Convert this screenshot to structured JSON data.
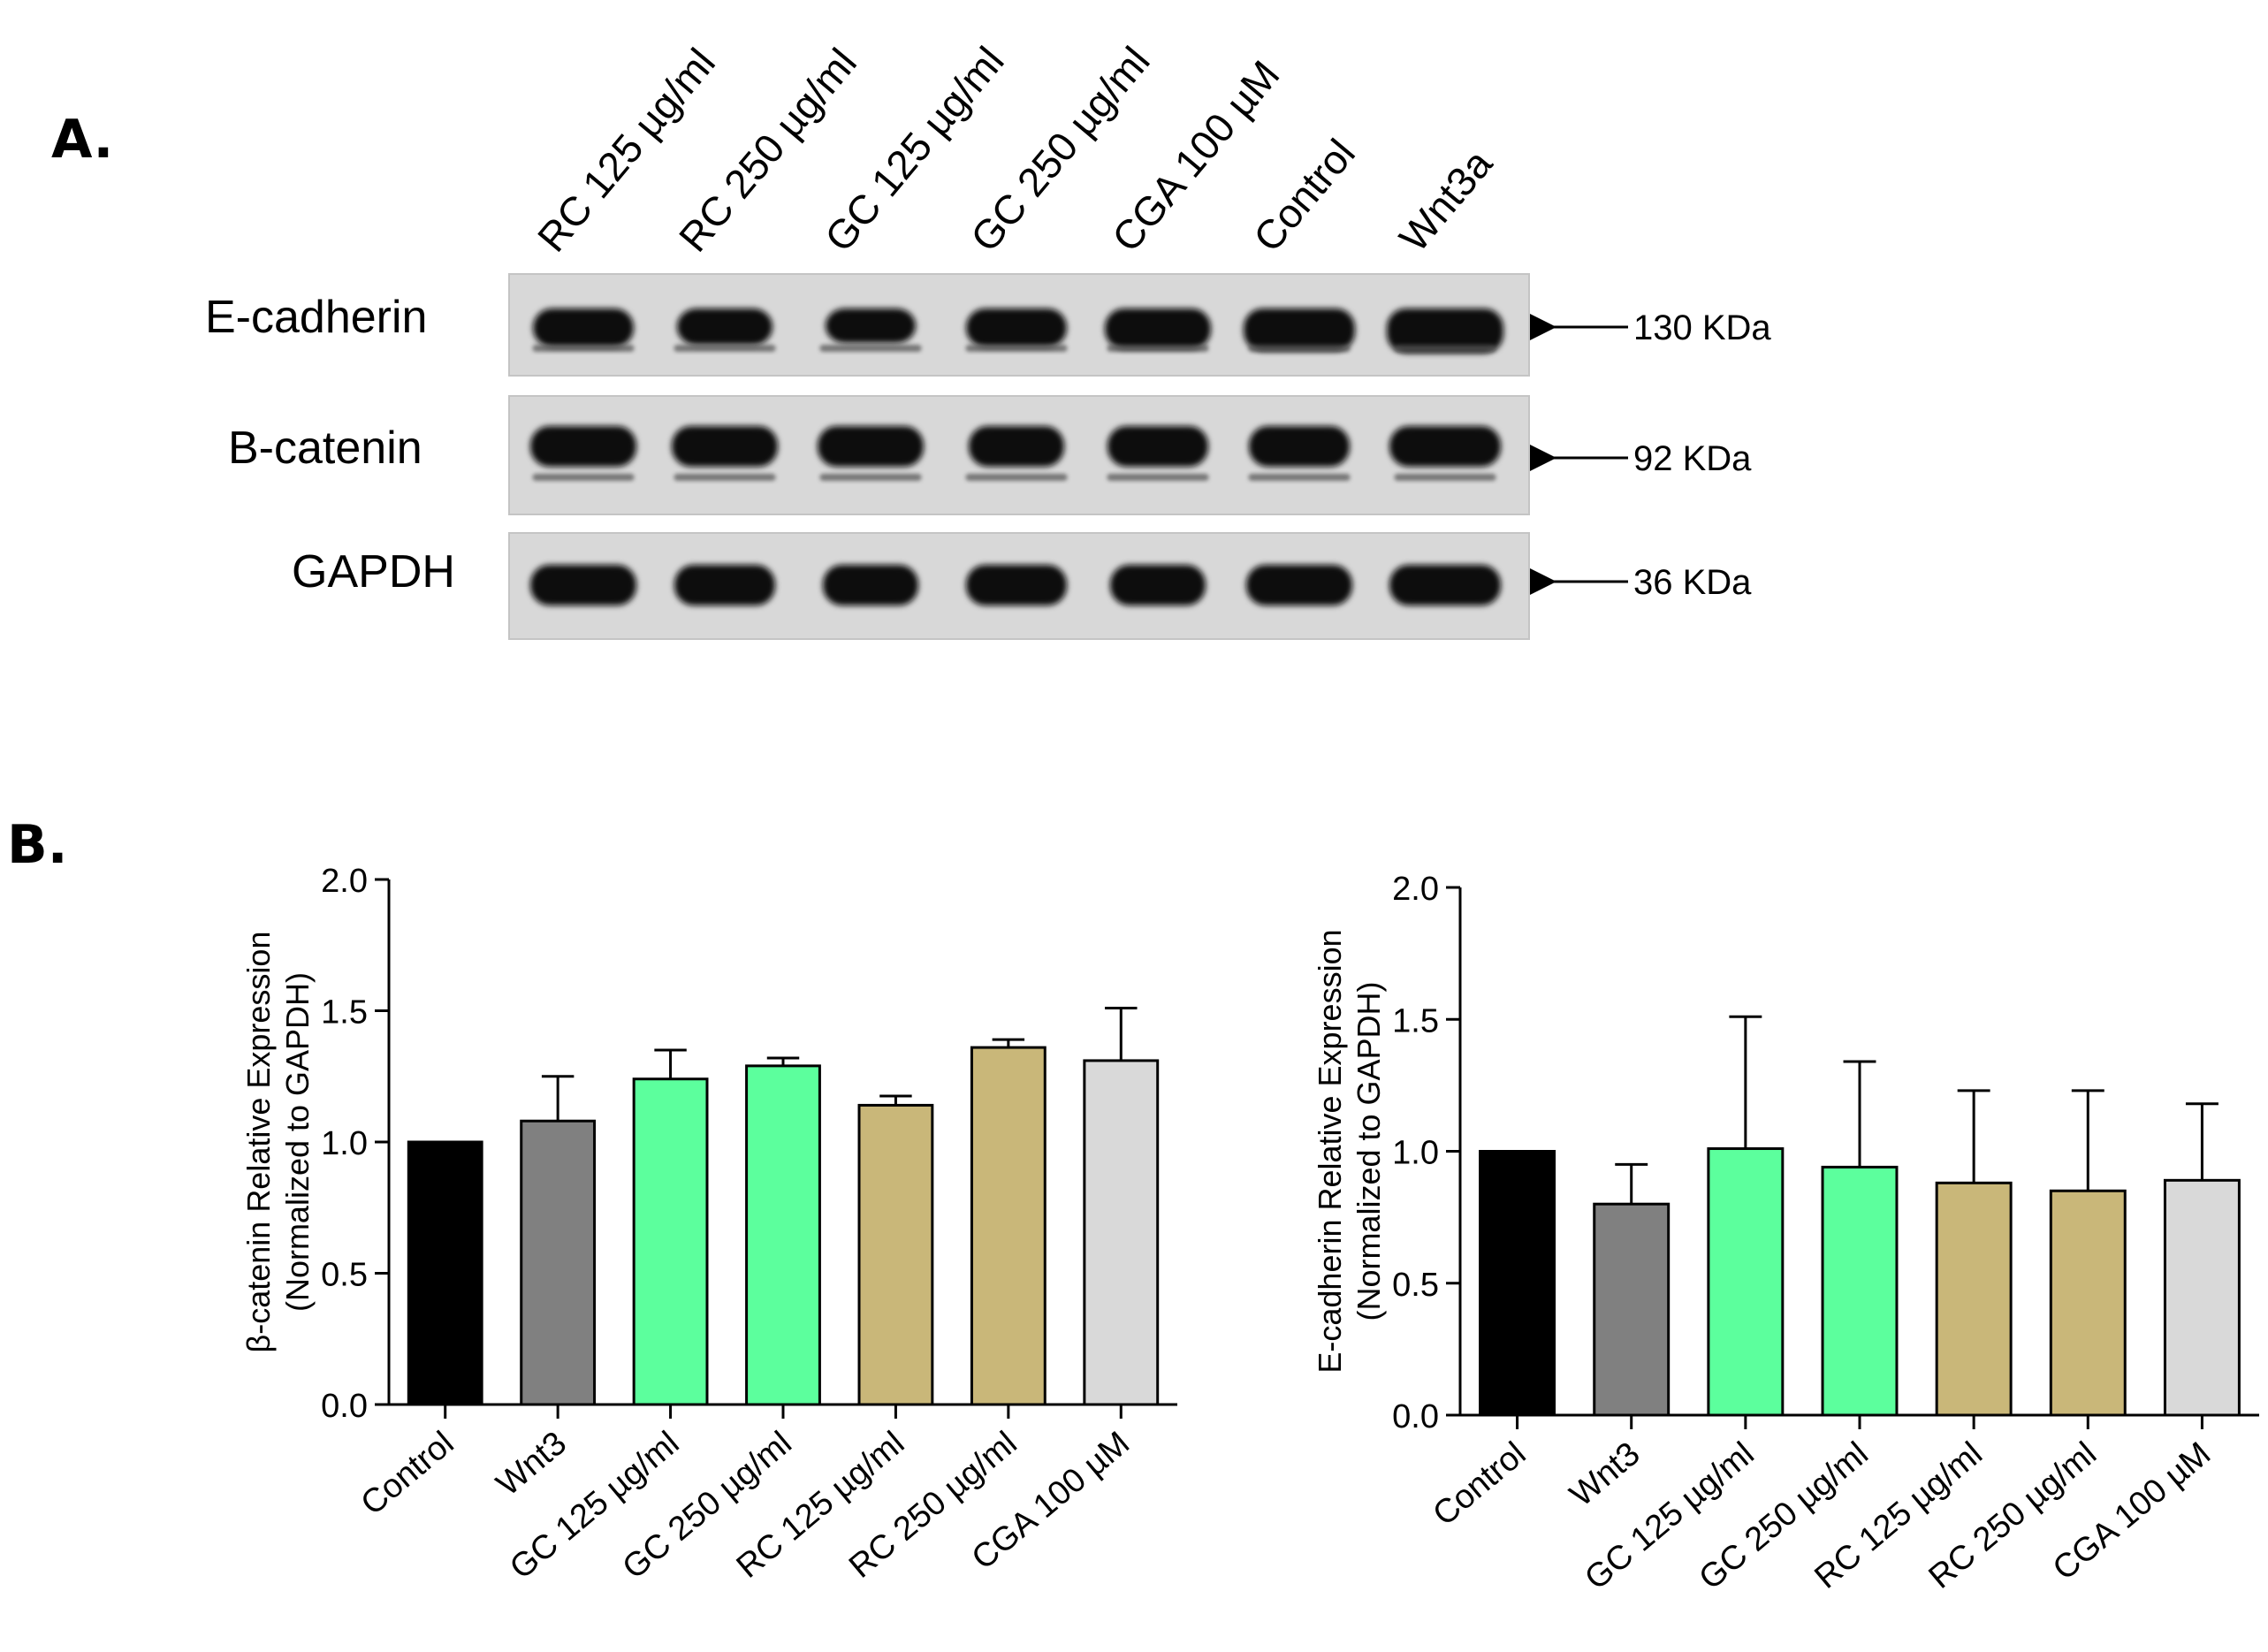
{
  "panel_a": {
    "label": "A.",
    "lanes": [
      "RC 125 µg/ml",
      "RC 250 µg/ml",
      "GC 125 µg/ml",
      "GC 250 µg/ml",
      "CGA 100 µM",
      "Control",
      "Wnt3a"
    ],
    "blots": [
      {
        "protein": "E-cadherin",
        "size": "130 KDa"
      },
      {
        "protein": "B-catenin",
        "size": "92 KDa"
      },
      {
        "protein": "GAPDH",
        "size": "36 KDa"
      }
    ]
  },
  "panel_b": {
    "label": "B."
  },
  "colors": {
    "Control": "#000000",
    "Wnt3": "#808080",
    "GC": "#5cff9d",
    "RC": "#c9b779",
    "CGA": "#d9d9d9",
    "blot_bg": "#d8d8d8",
    "band": "#111111"
  },
  "chart_data": [
    {
      "type": "bar",
      "categories": [
        "Control",
        "Wnt3",
        "GC 125 µg/ml",
        "GC 250 µg/ml",
        "RC 125 µg/ml",
        "RC 250 µg/ml",
        "CGA 100 µM"
      ],
      "values": [
        1.0,
        1.08,
        1.24,
        1.29,
        1.14,
        1.36,
        1.31
      ],
      "errors": [
        0.0,
        0.17,
        0.11,
        0.03,
        0.035,
        0.03,
        0.2
      ],
      "colors": [
        "#000000",
        "#808080",
        "#5cff9d",
        "#5cff9d",
        "#c9b779",
        "#c9b779",
        "#d9d9d9"
      ],
      "ylabel": [
        "β-catenin Relative Expression",
        "(Normalized to GAPDH)"
      ],
      "ylim": [
        0,
        2.0
      ],
      "yticks": [
        "0.0",
        "0.5",
        "1.0",
        "1.5",
        "2.0"
      ]
    },
    {
      "type": "bar",
      "categories": [
        "Control",
        "Wnt3",
        "GC 125 µg/ml",
        "GC 250 µg/ml",
        "RC 125 µg/ml",
        "RC 250 µg/ml",
        "CGA 100 µM"
      ],
      "values": [
        1.0,
        0.8,
        1.01,
        0.94,
        0.88,
        0.85,
        0.89
      ],
      "errors": [
        0.0,
        0.15,
        0.5,
        0.4,
        0.35,
        0.38,
        0.29
      ],
      "colors": [
        "#000000",
        "#808080",
        "#5cff9d",
        "#5cff9d",
        "#c9b779",
        "#c9b779",
        "#d9d9d9"
      ],
      "ylabel": [
        "E-cadherin Relative Expression",
        "(Normalized to GAPDH)"
      ],
      "ylim": [
        0,
        2.0
      ],
      "yticks": [
        "0.0",
        "0.5",
        "1.0",
        "1.5",
        "2.0"
      ]
    }
  ]
}
